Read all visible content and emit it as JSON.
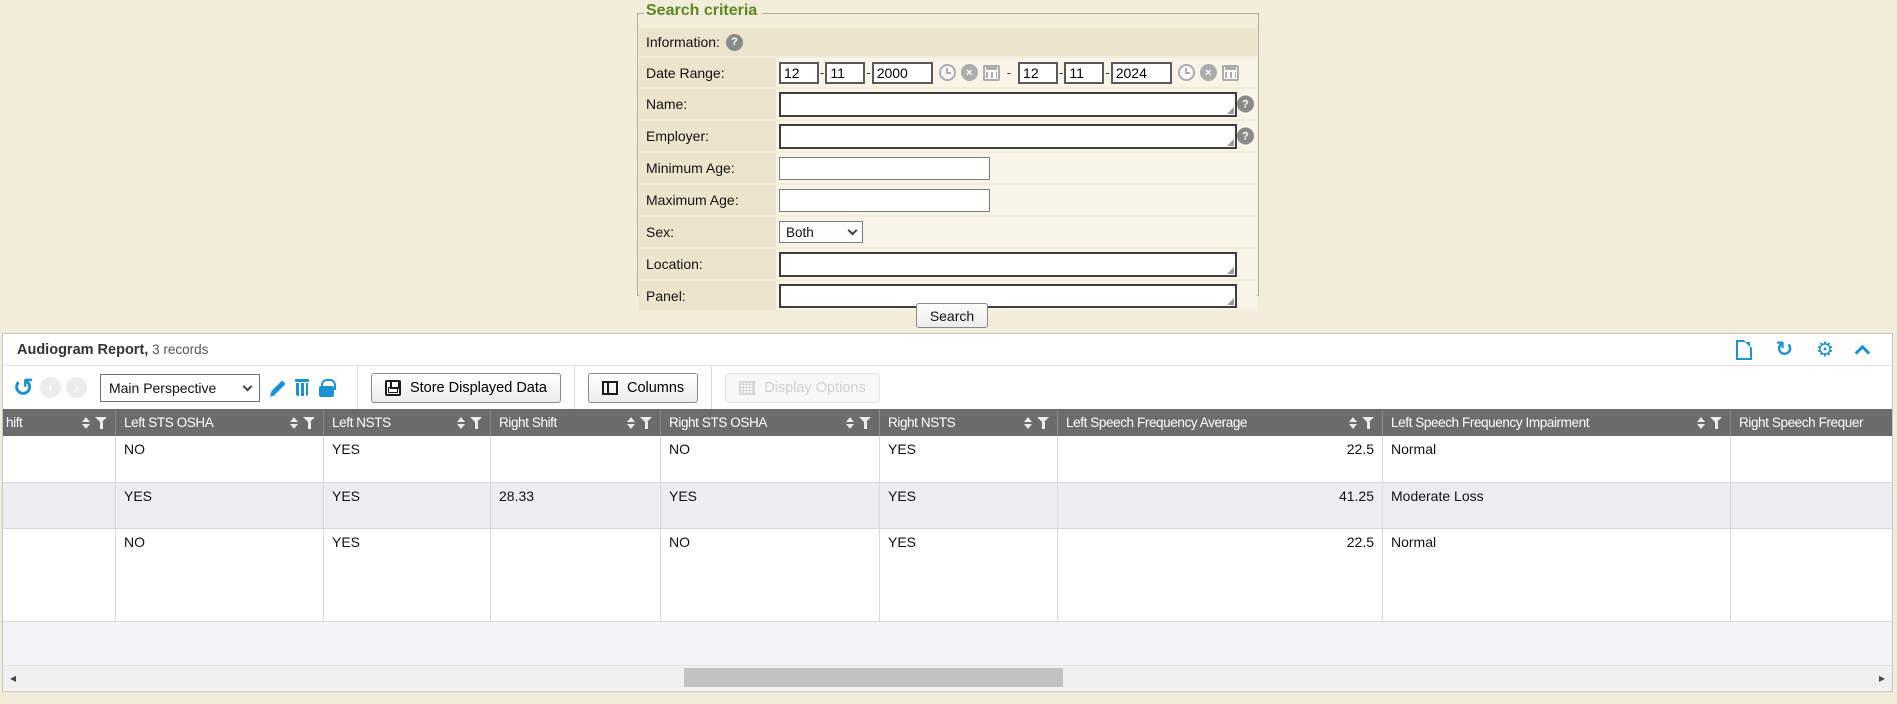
{
  "colors": {
    "accent_blue": "#1B93D3",
    "legend_green": "#5C8A1F",
    "header_gray": "#6C6C6C",
    "alt_row": "#EDEDF2",
    "page_beige": "#F2ECDB"
  },
  "icons": {
    "help": "?",
    "clear": "×",
    "undo": "↺",
    "prev": "‹",
    "next": "›",
    "refresh": "↻",
    "gear": "⚙",
    "scroll_left": "◂",
    "scroll_right": "▸"
  },
  "search": {
    "legend": "Search criteria",
    "information_label": "Information:",
    "date_range_label": "Date Range:",
    "name_label": "Name:",
    "employer_label": "Employer:",
    "min_age_label": "Minimum Age:",
    "max_age_label": "Maximum Age:",
    "sex_label": "Sex:",
    "location_label": "Location:",
    "panel_label": "Panel:",
    "date_from": {
      "month": "12",
      "day": "11",
      "year": "2000"
    },
    "date_to": {
      "month": "12",
      "day": "11",
      "year": "2024"
    },
    "date_separator": "-",
    "name_value": "",
    "employer_value": "",
    "min_age_value": "",
    "max_age_value": "",
    "sex_value": "Both",
    "location_value": "",
    "panel_value": "",
    "search_button": "Search"
  },
  "report": {
    "title": "Audiogram Report,",
    "records_text": " 3 records",
    "perspective_value": "Main Perspective",
    "store_button": "Store Displayed Data",
    "columns_button": "Columns",
    "display_options_button": "Display Options",
    "table": {
      "columns": [
        "hift",
        "Left STS OSHA",
        "Left NSTS",
        "Right Shift",
        "Right STS OSHA",
        "Right NSTS",
        "Left Speech Frequency Average",
        "Left Speech Frequency Impairment",
        "Right Speech Frequer"
      ],
      "rows": [
        [
          "",
          "NO",
          "YES",
          "",
          "NO",
          "YES",
          "22.5",
          "Normal",
          ""
        ],
        [
          "",
          "YES",
          "YES",
          "28.33",
          "YES",
          "YES",
          "41.25",
          "Moderate Loss",
          ""
        ],
        [
          "",
          "NO",
          "YES",
          "",
          "NO",
          "YES",
          "22.5",
          "Normal",
          ""
        ]
      ]
    }
  }
}
